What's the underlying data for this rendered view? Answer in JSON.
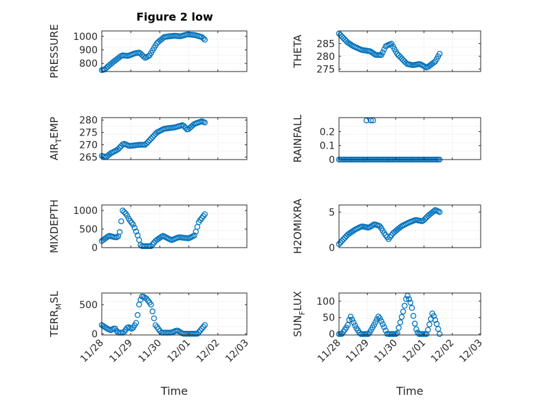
{
  "figure": {
    "title": "Figure 2 low"
  },
  "style": {
    "marker_color": "#0072bd",
    "axis_color": "#262626",
    "grid_color": "#dcdcdc"
  },
  "chart_data": [
    {
      "type": "scatter",
      "ylabel": "PRESSURE",
      "ylim": [
        740,
        1040
      ],
      "yticks": [
        800,
        900,
        1000
      ],
      "ytick_labels": [
        "800",
        "900",
        "1000"
      ],
      "xlim": [
        0,
        5
      ],
      "xticks": [
        0,
        1,
        2,
        3,
        4,
        5
      ],
      "xtick_labels": [],
      "xlabel": "",
      "grid": "dotted",
      "knots": [
        [
          0,
          750
        ],
        [
          0.1,
          755
        ],
        [
          0.25,
          785
        ],
        [
          0.45,
          820
        ],
        [
          0.7,
          860
        ],
        [
          0.9,
          855
        ],
        [
          1.15,
          875
        ],
        [
          1.3,
          880
        ],
        [
          1.5,
          840
        ],
        [
          1.65,
          860
        ],
        [
          1.9,
          950
        ],
        [
          2.15,
          995
        ],
        [
          2.5,
          1005
        ],
        [
          2.7,
          1000
        ],
        [
          2.95,
          1015
        ],
        [
          3.2,
          1010
        ],
        [
          3.45,
          995
        ],
        [
          3.55,
          975
        ]
      ],
      "n": 70
    },
    {
      "type": "scatter",
      "ylabel": "THETA",
      "ylim": [
        274,
        290
      ],
      "yticks": [
        275,
        280,
        285
      ],
      "ytick_labels": [
        "275",
        "280",
        "285"
      ],
      "xlim": [
        0,
        5
      ],
      "xticks": [
        0,
        1,
        2,
        3,
        4,
        5
      ],
      "xtick_labels": [],
      "xlabel": "",
      "grid": "dotted",
      "knots": [
        [
          0,
          289
        ],
        [
          0.3,
          285.5
        ],
        [
          0.5,
          284
        ],
        [
          0.8,
          282.5
        ],
        [
          1.1,
          282
        ],
        [
          1.3,
          280.5
        ],
        [
          1.5,
          280.5
        ],
        [
          1.65,
          284
        ],
        [
          1.85,
          285
        ],
        [
          2.05,
          281
        ],
        [
          2.4,
          277
        ],
        [
          2.6,
          276.5
        ],
        [
          2.85,
          277
        ],
        [
          3.1,
          275.5
        ],
        [
          3.4,
          278
        ],
        [
          3.55,
          281
        ]
      ],
      "n": 70
    },
    {
      "type": "scatter",
      "ylabel": "AIR_TEMP",
      "ylim": [
        264,
        281
      ],
      "yticks": [
        265,
        270,
        275,
        280
      ],
      "ytick_labels": [
        "265",
        "270",
        "275",
        "280"
      ],
      "xlim": [
        0,
        5
      ],
      "xticks": [
        0,
        1,
        2,
        3,
        4,
        5
      ],
      "xtick_labels": [],
      "xlabel": "",
      "grid": "dotted",
      "knots": [
        [
          0,
          265.5
        ],
        [
          0.15,
          265
        ],
        [
          0.3,
          266.5
        ],
        [
          0.55,
          268
        ],
        [
          0.75,
          270.5
        ],
        [
          0.95,
          269.5
        ],
        [
          1.3,
          270
        ],
        [
          1.5,
          270
        ],
        [
          1.9,
          275
        ],
        [
          2.15,
          276.5
        ],
        [
          2.5,
          277
        ],
        [
          2.8,
          278
        ],
        [
          2.95,
          276
        ],
        [
          3.2,
          278.5
        ],
        [
          3.45,
          279.5
        ],
        [
          3.55,
          279
        ]
      ],
      "n": 70
    },
    {
      "type": "scatter",
      "ylabel": "RAINFALL",
      "ylim": [
        0,
        0.3
      ],
      "yticks": [
        0,
        0.1,
        0.2
      ],
      "ytick_labels": [
        "0",
        "0.1",
        "0.2"
      ],
      "xlim": [
        0,
        5
      ],
      "xticks": [
        0,
        1,
        2,
        3,
        4,
        5
      ],
      "xtick_labels": [],
      "xlabel": "",
      "grid": "dotted",
      "knots": [
        [
          0,
          0
        ],
        [
          3.55,
          0
        ]
      ],
      "n": 70,
      "extra_points": [
        [
          0.97,
          0.28
        ],
        [
          1.12,
          0.28
        ],
        [
          1.2,
          0.28
        ]
      ]
    },
    {
      "type": "scatter",
      "ylabel": "MIXDEPTH",
      "ylim": [
        0,
        1150
      ],
      "yticks": [
        0,
        500,
        1000
      ],
      "ytick_labels": [
        "0",
        "500",
        "1000"
      ],
      "xlim": [
        0,
        5
      ],
      "xticks": [
        0,
        1,
        2,
        3,
        4,
        5
      ],
      "xtick_labels": [],
      "xlabel": "",
      "grid": "dotted",
      "knots": [
        [
          0,
          180
        ],
        [
          0.25,
          320
        ],
        [
          0.5,
          270
        ],
        [
          0.6,
          320
        ],
        [
          0.72,
          1000
        ],
        [
          0.85,
          900
        ],
        [
          0.95,
          750
        ],
        [
          1.1,
          600
        ],
        [
          1.25,
          300
        ],
        [
          1.35,
          40
        ],
        [
          1.7,
          40
        ],
        [
          1.85,
          180
        ],
        [
          2.1,
          320
        ],
        [
          2.4,
          200
        ],
        [
          2.65,
          280
        ],
        [
          3,
          250
        ],
        [
          3.2,
          330
        ],
        [
          3.35,
          700
        ],
        [
          3.55,
          900
        ]
      ],
      "n": 70
    },
    {
      "type": "scatter",
      "ylabel": "H2OMIXRA",
      "ylim": [
        0,
        6
      ],
      "yticks": [
        0,
        5
      ],
      "ytick_labels": [
        "0",
        "5"
      ],
      "xlim": [
        0,
        5
      ],
      "xticks": [
        0,
        1,
        2,
        3,
        4,
        5
      ],
      "xtick_labels": [],
      "xlabel": "",
      "grid": "dotted",
      "knots": [
        [
          0,
          0.5
        ],
        [
          0.3,
          1.8
        ],
        [
          0.55,
          2.5
        ],
        [
          0.8,
          3
        ],
        [
          1.05,
          2.8
        ],
        [
          1.25,
          3.3
        ],
        [
          1.45,
          3
        ],
        [
          1.6,
          2
        ],
        [
          1.75,
          1.2
        ],
        [
          1.9,
          2
        ],
        [
          2.2,
          3
        ],
        [
          2.45,
          3.5
        ],
        [
          2.7,
          3.9
        ],
        [
          2.95,
          3.7
        ],
        [
          3.15,
          4.5
        ],
        [
          3.4,
          5.3
        ],
        [
          3.55,
          5
        ]
      ],
      "n": 70
    },
    {
      "type": "scatter",
      "ylabel": "TERR_MSL",
      "ylim": [
        -20,
        700
      ],
      "yticks": [
        0,
        500
      ],
      "ytick_labels": [
        "0",
        "500"
      ],
      "xlim": [
        0,
        5
      ],
      "xticks": [
        0,
        1,
        2,
        3,
        4,
        5
      ],
      "xtick_labels": [
        "11/28",
        "11/29",
        "11/30",
        "12/01",
        "12/02",
        "12/03"
      ],
      "xlabel": "Time",
      "grid": "dotted",
      "knots": [
        [
          0,
          150
        ],
        [
          0.15,
          100
        ],
        [
          0.3,
          60
        ],
        [
          0.45,
          100
        ],
        [
          0.55,
          20
        ],
        [
          0.75,
          20
        ],
        [
          0.9,
          120
        ],
        [
          1.05,
          80
        ],
        [
          1.2,
          200
        ],
        [
          1.3,
          550
        ],
        [
          1.4,
          650
        ],
        [
          1.55,
          600
        ],
        [
          1.7,
          500
        ],
        [
          1.85,
          150
        ],
        [
          2.05,
          20
        ],
        [
          2.4,
          20
        ],
        [
          2.6,
          60
        ],
        [
          2.8,
          0
        ],
        [
          3.3,
          0
        ],
        [
          3.55,
          150
        ]
      ],
      "n": 70
    },
    {
      "type": "scatter",
      "ylabel": "SUN_FLUX",
      "ylim": [
        -3,
        125
      ],
      "yticks": [
        0,
        50,
        100
      ],
      "ytick_labels": [
        "0",
        "50",
        "100"
      ],
      "xlim": [
        0,
        5
      ],
      "xticks": [
        0,
        1,
        2,
        3,
        4,
        5
      ],
      "xtick_labels": [
        "11/28",
        "11/29",
        "11/30",
        "12/01",
        "12/02",
        "12/03"
      ],
      "xlabel": "Time",
      "grid": "dotted",
      "knots": [
        [
          0,
          0
        ],
        [
          0.1,
          0
        ],
        [
          0.3,
          25
        ],
        [
          0.4,
          55
        ],
        [
          0.6,
          20
        ],
        [
          0.75,
          0
        ],
        [
          1.05,
          0
        ],
        [
          1.25,
          30
        ],
        [
          1.4,
          55
        ],
        [
          1.6,
          20
        ],
        [
          1.7,
          0
        ],
        [
          2.05,
          0
        ],
        [
          2.3,
          80
        ],
        [
          2.4,
          120
        ],
        [
          2.55,
          90
        ],
        [
          2.7,
          20
        ],
        [
          2.8,
          0
        ],
        [
          3.1,
          0
        ],
        [
          3.3,
          65
        ],
        [
          3.45,
          30
        ],
        [
          3.55,
          0
        ]
      ],
      "n": 70
    }
  ]
}
